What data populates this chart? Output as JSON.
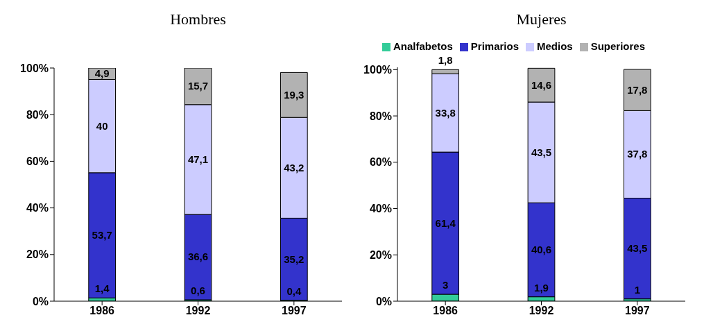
{
  "chart_data": [
    {
      "type": "bar",
      "title": "Hombres",
      "stacked": true,
      "categories": [
        "1986",
        "1992",
        "1997"
      ],
      "ylim": [
        0,
        100
      ],
      "yticks": [
        {
          "value": 0,
          "label": "0%"
        },
        {
          "value": 20,
          "label": "20%"
        },
        {
          "value": 40,
          "label": "40%"
        },
        {
          "value": 60,
          "label": "60%"
        },
        {
          "value": 80,
          "label": "80%"
        },
        {
          "value": 100,
          "label": "100%"
        }
      ],
      "grid": false,
      "legend": false,
      "series": [
        {
          "color": "#33cc99",
          "values": [
            1.4,
            0.6,
            0.4
          ],
          "value_labels": [
            "1,4",
            "0,6",
            "0,4"
          ]
        },
        {
          "color": "#3333cc",
          "values": [
            53.7,
            36.6,
            35.2
          ],
          "value_labels": [
            "53,7",
            "36,6",
            "35,2"
          ]
        },
        {
          "color": "#ccccff",
          "values": [
            40,
            47.1,
            43.2
          ],
          "value_labels": [
            "40",
            "47,1",
            "43,2"
          ]
        },
        {
          "color": "#b2b2b2",
          "values": [
            4.9,
            15.7,
            19.3
          ],
          "value_labels": [
            "4,9",
            "15,7",
            "19,3"
          ]
        }
      ]
    },
    {
      "type": "bar",
      "title": "Mujeres",
      "stacked": true,
      "categories": [
        "1986",
        "1992",
        "1997"
      ],
      "ylim": [
        0,
        101
      ],
      "yticks": [
        {
          "value": 0,
          "label": "0%"
        },
        {
          "value": 20,
          "label": "20%"
        },
        {
          "value": 40,
          "label": "40%"
        },
        {
          "value": 60,
          "label": "60%"
        },
        {
          "value": 80,
          "label": "80%"
        },
        {
          "value": 100,
          "label": "100%"
        }
      ],
      "grid": false,
      "legend": "top",
      "series": [
        {
          "name": "Analfabetos",
          "color": "#33cc99",
          "values": [
            3,
            1.9,
            1
          ],
          "value_labels": [
            "3",
            "1,9",
            "1"
          ]
        },
        {
          "name": "Primarios",
          "color": "#3333cc",
          "values": [
            61.4,
            40.6,
            43.5
          ],
          "value_labels": [
            "61,4",
            "40,6",
            "43,5"
          ]
        },
        {
          "name": "Medios",
          "color": "#ccccff",
          "values": [
            33.8,
            43.5,
            37.8
          ],
          "value_labels": [
            "33,8",
            "43,5",
            "37,8"
          ]
        },
        {
          "name": "Superiores",
          "color": "#b2b2b2",
          "values": [
            1.8,
            14.6,
            17.8
          ],
          "value_labels": [
            "1,8",
            "14,6",
            "17,8"
          ]
        }
      ]
    }
  ]
}
